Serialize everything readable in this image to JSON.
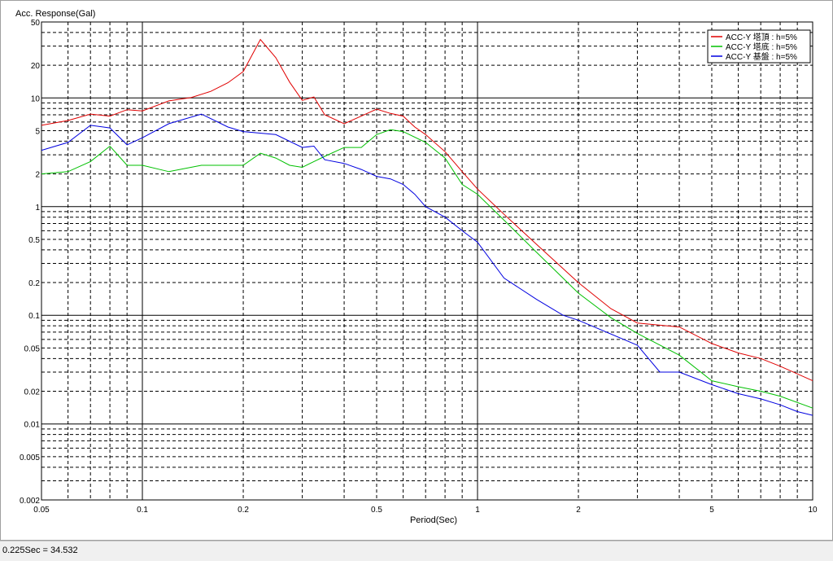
{
  "status_bar": {
    "text": "0.225Sec = 34.532"
  },
  "chart_data": {
    "type": "line",
    "title": "",
    "xlabel": "Period(Sec)",
    "ylabel": "Acc. Response(Gal)",
    "x_scale": "log",
    "y_scale": "log",
    "xlim": [
      0.05,
      10
    ],
    "ylim": [
      0.002,
      50
    ],
    "grid": true,
    "legend_position": "top-right",
    "x_ticks": [
      {
        "value": 0.05,
        "label": "0.05"
      },
      {
        "value": 0.1,
        "label": "0.1"
      },
      {
        "value": 0.2,
        "label": "0.2"
      },
      {
        "value": 0.5,
        "label": "0.5"
      },
      {
        "value": 1,
        "label": "1"
      },
      {
        "value": 2,
        "label": "2"
      },
      {
        "value": 5,
        "label": "5"
      },
      {
        "value": 10,
        "label": "10"
      }
    ],
    "y_ticks": [
      {
        "value": 0.002,
        "label": "0.002"
      },
      {
        "value": 0.005,
        "label": "0.005"
      },
      {
        "value": 0.01,
        "label": "0.01"
      },
      {
        "value": 0.02,
        "label": "0.02"
      },
      {
        "value": 0.05,
        "label": "0.05"
      },
      {
        "value": 0.1,
        "label": "0.1"
      },
      {
        "value": 0.2,
        "label": "0.2"
      },
      {
        "value": 0.5,
        "label": "0.5"
      },
      {
        "value": 1,
        "label": "1"
      },
      {
        "value": 2,
        "label": "2"
      },
      {
        "value": 5,
        "label": "5"
      },
      {
        "value": 10,
        "label": "10"
      },
      {
        "value": 20,
        "label": "20"
      },
      {
        "value": 50,
        "label": "50"
      }
    ],
    "series": [
      {
        "name": "ACC-Y 塔頂 : h=5%",
        "color": "#e00000",
        "points": [
          [
            0.05,
            5.6
          ],
          [
            0.06,
            6.2
          ],
          [
            0.07,
            7.1
          ],
          [
            0.08,
            6.8
          ],
          [
            0.09,
            7.8
          ],
          [
            0.1,
            7.6
          ],
          [
            0.12,
            9.4
          ],
          [
            0.14,
            10.1
          ],
          [
            0.16,
            11.5
          ],
          [
            0.18,
            13.8
          ],
          [
            0.2,
            17.5
          ],
          [
            0.225,
            34.5
          ],
          [
            0.25,
            23.5
          ],
          [
            0.275,
            14.0
          ],
          [
            0.3,
            9.5
          ],
          [
            0.325,
            10.2
          ],
          [
            0.35,
            7.0
          ],
          [
            0.4,
            5.8
          ],
          [
            0.45,
            6.8
          ],
          [
            0.5,
            7.9
          ],
          [
            0.55,
            7.2
          ],
          [
            0.6,
            6.8
          ],
          [
            0.65,
            5.4
          ],
          [
            0.7,
            4.6
          ],
          [
            0.8,
            3.2
          ],
          [
            0.9,
            2.1
          ],
          [
            1.0,
            1.45
          ],
          [
            1.2,
            0.85
          ],
          [
            1.5,
            0.45
          ],
          [
            2.0,
            0.2
          ],
          [
            2.5,
            0.115
          ],
          [
            3.0,
            0.085
          ],
          [
            4.0,
            0.078
          ],
          [
            5.0,
            0.055
          ],
          [
            6.0,
            0.045
          ],
          [
            7.0,
            0.04
          ],
          [
            8.0,
            0.034
          ],
          [
            10.0,
            0.025
          ]
        ]
      },
      {
        "name": "ACC-Y 塔底 : h=5%",
        "color": "#00c000",
        "points": [
          [
            0.05,
            2.0
          ],
          [
            0.06,
            2.1
          ],
          [
            0.07,
            2.6
          ],
          [
            0.08,
            3.6
          ],
          [
            0.09,
            2.4
          ],
          [
            0.1,
            2.4
          ],
          [
            0.12,
            2.1
          ],
          [
            0.15,
            2.4
          ],
          [
            0.2,
            2.4
          ],
          [
            0.225,
            3.1
          ],
          [
            0.25,
            2.8
          ],
          [
            0.275,
            2.4
          ],
          [
            0.3,
            2.3
          ],
          [
            0.325,
            2.6
          ],
          [
            0.35,
            2.9
          ],
          [
            0.4,
            3.5
          ],
          [
            0.45,
            3.5
          ],
          [
            0.5,
            4.6
          ],
          [
            0.55,
            5.1
          ],
          [
            0.6,
            4.9
          ],
          [
            0.7,
            3.9
          ],
          [
            0.8,
            2.8
          ],
          [
            0.9,
            1.6
          ],
          [
            1.0,
            1.3
          ],
          [
            1.2,
            0.75
          ],
          [
            1.5,
            0.38
          ],
          [
            2.0,
            0.16
          ],
          [
            2.5,
            0.095
          ],
          [
            3.0,
            0.068
          ],
          [
            4.0,
            0.043
          ],
          [
            5.0,
            0.025
          ],
          [
            6.0,
            0.022
          ],
          [
            7.0,
            0.02
          ],
          [
            8.0,
            0.018
          ],
          [
            10.0,
            0.014
          ]
        ]
      },
      {
        "name": "ACC-Y 基盤 : h=5%",
        "color": "#0000e0",
        "points": [
          [
            0.05,
            3.3
          ],
          [
            0.06,
            3.9
          ],
          [
            0.07,
            5.6
          ],
          [
            0.08,
            5.3
          ],
          [
            0.09,
            3.7
          ],
          [
            0.1,
            4.3
          ],
          [
            0.12,
            5.8
          ],
          [
            0.15,
            7.1
          ],
          [
            0.18,
            5.4
          ],
          [
            0.2,
            4.9
          ],
          [
            0.25,
            4.6
          ],
          [
            0.3,
            3.5
          ],
          [
            0.325,
            3.6
          ],
          [
            0.35,
            2.7
          ],
          [
            0.4,
            2.5
          ],
          [
            0.45,
            2.2
          ],
          [
            0.5,
            1.9
          ],
          [
            0.55,
            1.8
          ],
          [
            0.6,
            1.6
          ],
          [
            0.65,
            1.3
          ],
          [
            0.7,
            1.0
          ],
          [
            0.8,
            0.8
          ],
          [
            0.9,
            0.6
          ],
          [
            1.0,
            0.47
          ],
          [
            1.2,
            0.22
          ],
          [
            1.5,
            0.14
          ],
          [
            1.8,
            0.1
          ],
          [
            2.0,
            0.09
          ],
          [
            3.0,
            0.053
          ],
          [
            3.5,
            0.03
          ],
          [
            4.0,
            0.03
          ],
          [
            5.0,
            0.023
          ],
          [
            6.0,
            0.019
          ],
          [
            7.0,
            0.017
          ],
          [
            8.0,
            0.015
          ],
          [
            9.0,
            0.013
          ],
          [
            10.0,
            0.012
          ]
        ]
      }
    ]
  }
}
